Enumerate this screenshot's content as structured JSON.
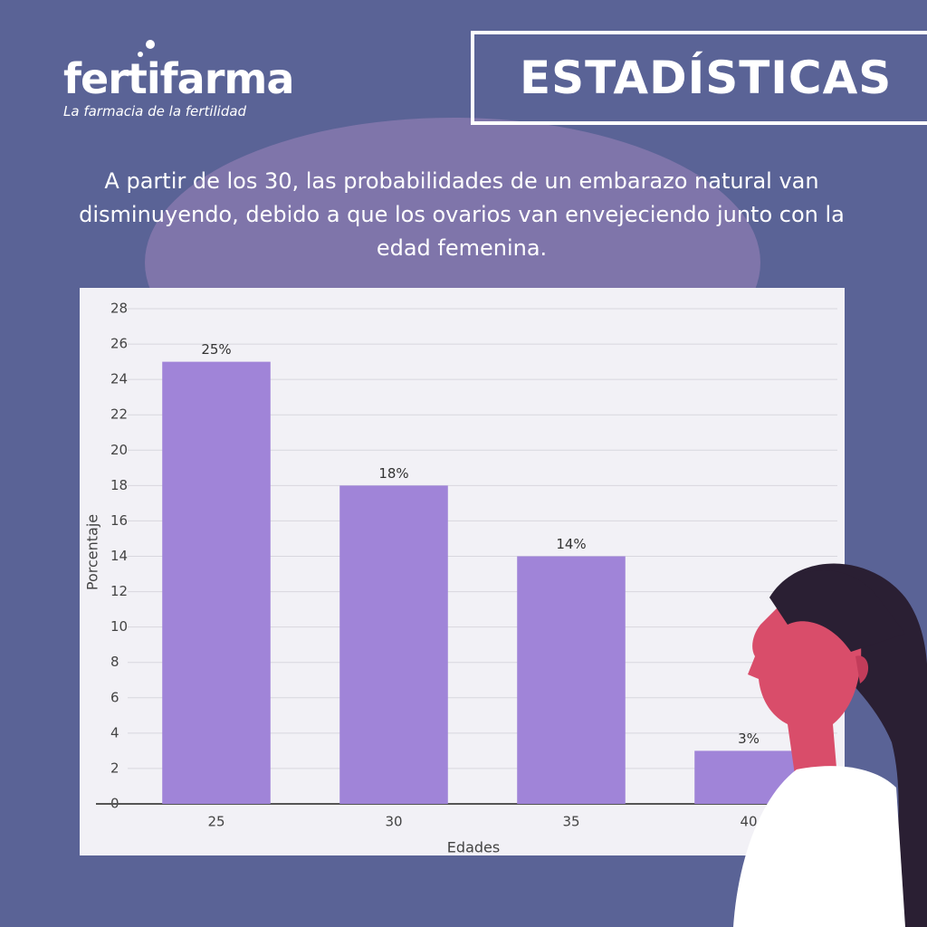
{
  "header": {
    "logo": "fertifarma",
    "tagline": "La farmacia de la fertilidad",
    "badge": "ESTADÍSTICAS"
  },
  "description": "A partir de los 30, las probabilidades de un embarazo natural van disminuyendo, debido a que los ovarios van envejeciendo junto con la edad femenina.",
  "chart_data": {
    "type": "bar",
    "categories": [
      "25",
      "30",
      "35",
      "40"
    ],
    "values": [
      25,
      18,
      14,
      3
    ],
    "value_labels": [
      "25%",
      "18%",
      "14%",
      "3%"
    ],
    "color": "#a084d8",
    "x_label": "Edades",
    "y_label": "Porcentaje",
    "ylim": [
      0,
      28
    ],
    "yticks": [
      0,
      2,
      4,
      6,
      8,
      10,
      12,
      14,
      16,
      18,
      20,
      22,
      24,
      26,
      28
    ],
    "grid": true
  }
}
